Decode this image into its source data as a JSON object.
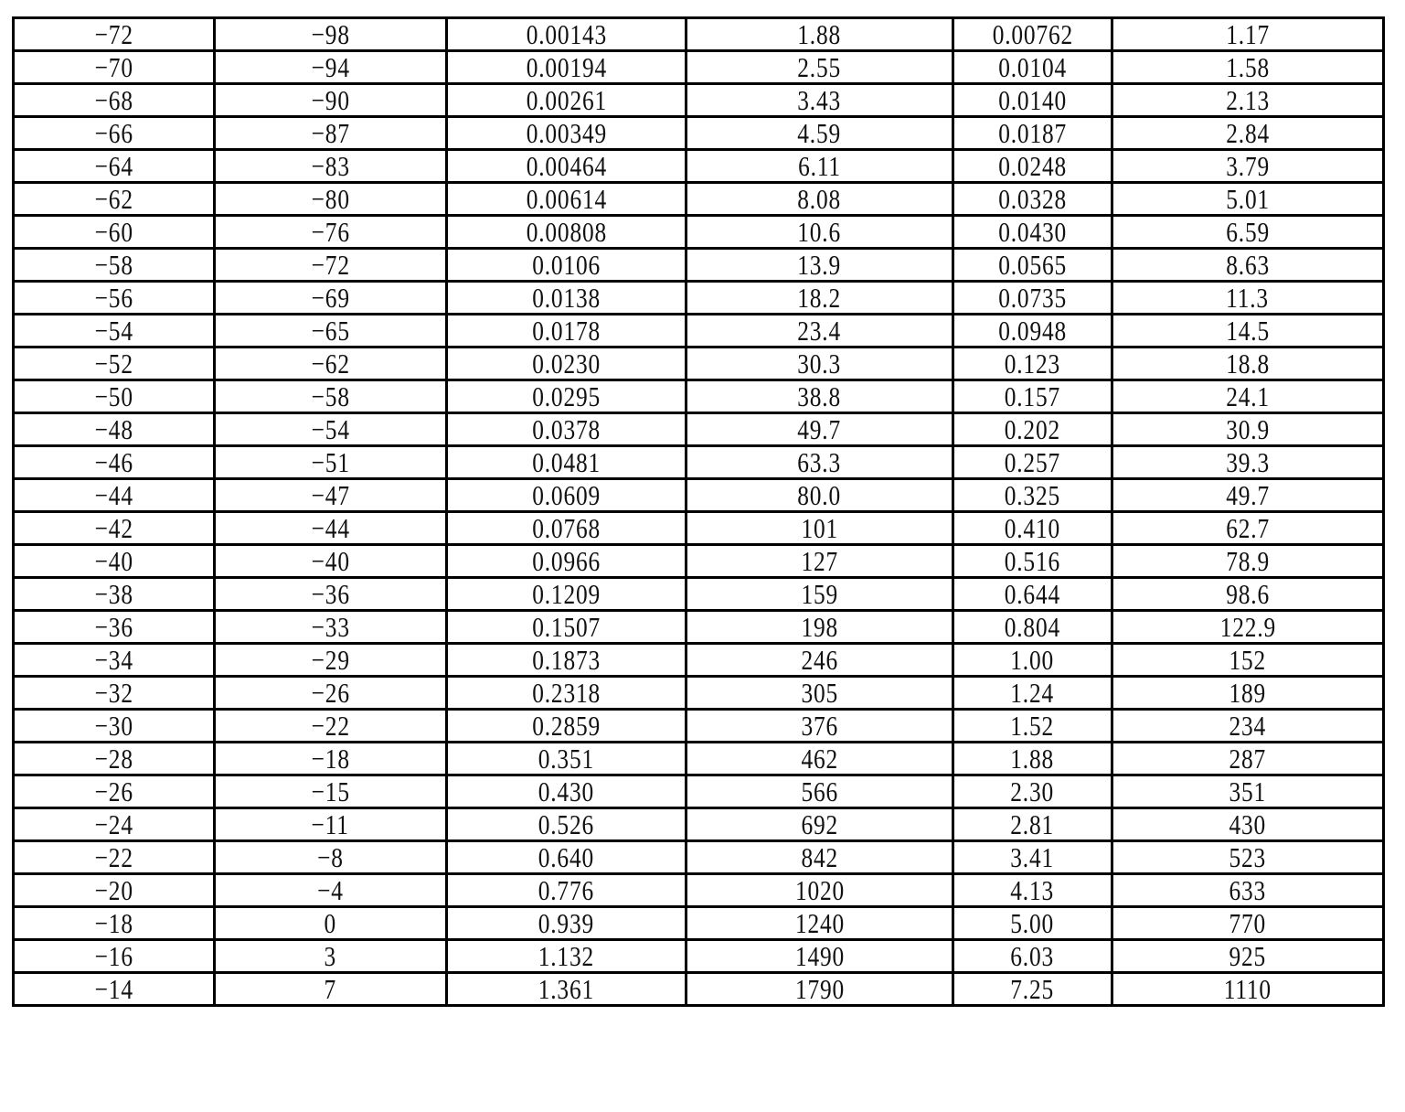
{
  "table": {
    "rows": [
      [
        "−72",
        "−98",
        "0.00143",
        "1.88",
        "0.00762",
        "1.17"
      ],
      [
        "−70",
        "−94",
        "0.00194",
        "2.55",
        "0.0104",
        "1.58"
      ],
      [
        "−68",
        "−90",
        "0.00261",
        "3.43",
        "0.0140",
        "2.13"
      ],
      [
        "−66",
        "−87",
        "0.00349",
        "4.59",
        "0.0187",
        "2.84"
      ],
      [
        "−64",
        "−83",
        "0.00464",
        "6.11",
        "0.0248",
        "3.79"
      ],
      [
        "−62",
        "−80",
        "0.00614",
        "8.08",
        "0.0328",
        "5.01"
      ],
      [
        "−60",
        "−76",
        "0.00808",
        "10.6",
        "0.0430",
        "6.59"
      ],
      [
        "−58",
        "−72",
        "0.0106",
        "13.9",
        "0.0565",
        "8.63"
      ],
      [
        "−56",
        "−69",
        "0.0138",
        "18.2",
        "0.0735",
        "11.3"
      ],
      [
        "−54",
        "−65",
        "0.0178",
        "23.4",
        "0.0948",
        "14.5"
      ],
      [
        "−52",
        "−62",
        "0.0230",
        "30.3",
        "0.123",
        "18.8"
      ],
      [
        "−50",
        "−58",
        "0.0295",
        "38.8",
        "0.157",
        "24.1"
      ],
      [
        "−48",
        "−54",
        "0.0378",
        "49.7",
        "0.202",
        "30.9"
      ],
      [
        "−46",
        "−51",
        "0.0481",
        "63.3",
        "0.257",
        "39.3"
      ],
      [
        "−44",
        "−47",
        "0.0609",
        "80.0",
        "0.325",
        "49.7"
      ],
      [
        "−42",
        "−44",
        "0.0768",
        "101",
        "0.410",
        "62.7"
      ],
      [
        "−40",
        "−40",
        "0.0966",
        "127",
        "0.516",
        "78.9"
      ],
      [
        "−38",
        "−36",
        "0.1209",
        "159",
        "0.644",
        "98.6"
      ],
      [
        "−36",
        "−33",
        "0.1507",
        "198",
        "0.804",
        "122.9"
      ],
      [
        "−34",
        "−29",
        "0.1873",
        "246",
        "1.00",
        "152"
      ],
      [
        "−32",
        "−26",
        "0.2318",
        "305",
        "1.24",
        "189"
      ],
      [
        "−30",
        "−22",
        "0.2859",
        "376",
        "1.52",
        "234"
      ],
      [
        "−28",
        "−18",
        "0.351",
        "462",
        "1.88",
        "287"
      ],
      [
        "−26",
        "−15",
        "0.430",
        "566",
        "2.30",
        "351"
      ],
      [
        "−24",
        "−11",
        "0.526",
        "692",
        "2.81",
        "430"
      ],
      [
        "−22",
        "−8",
        "0.640",
        "842",
        "3.41",
        "523"
      ],
      [
        "−20",
        "−4",
        "0.776",
        "1020",
        "4.13",
        "633"
      ],
      [
        "−18",
        "0",
        "0.939",
        "1240",
        "5.00",
        "770"
      ],
      [
        "−16",
        "3",
        "1.132",
        "1490",
        "6.03",
        "925"
      ],
      [
        "−14",
        "7",
        "1.361",
        "1790",
        "7.25",
        "1110"
      ]
    ]
  }
}
